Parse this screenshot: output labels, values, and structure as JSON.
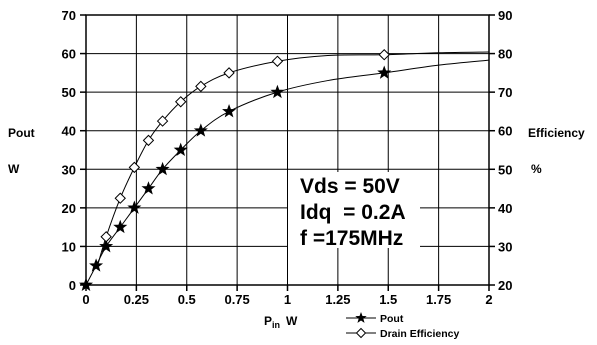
{
  "chart_data": {
    "type": "line",
    "x_axis": {
      "label_main": "P",
      "label_sub": "in",
      "label_unit": "W",
      "range": [
        0,
        2
      ],
      "ticks": [
        "0",
        "0.25",
        "0.5",
        "0.75",
        "1",
        "1.25",
        "1.5",
        "1.75",
        "2"
      ]
    },
    "y_axis_left": {
      "label": "Pout",
      "unit": "W",
      "range": [
        0,
        70
      ],
      "ticks": [
        "0",
        "10",
        "20",
        "30",
        "40",
        "50",
        "60",
        "70"
      ]
    },
    "y_axis_right": {
      "label": "Efficiency",
      "unit": "%",
      "range": [
        20,
        90
      ],
      "ticks": [
        "20",
        "30",
        "40",
        "50",
        "60",
        "70",
        "80",
        "90"
      ]
    },
    "grid": true,
    "legend_position": "bottom-right",
    "annotations": [
      "Vds = 50V",
      "Idq  = 0.2A",
      "f =175MHz"
    ],
    "series": [
      {
        "name": "Pout",
        "axis": "left",
        "marker": "star",
        "points": [
          [
            0,
            0
          ],
          [
            0.05,
            5
          ],
          [
            0.1,
            10
          ],
          [
            0.17,
            15
          ],
          [
            0.24,
            20
          ],
          [
            0.31,
            25
          ],
          [
            0.38,
            30
          ],
          [
            0.47,
            35
          ],
          [
            0.57,
            40
          ],
          [
            0.71,
            45
          ],
          [
            0.95,
            50
          ],
          [
            1.48,
            55
          ]
        ],
        "curve": [
          [
            0,
            0
          ],
          [
            0.05,
            5
          ],
          [
            0.1,
            10
          ],
          [
            0.17,
            15
          ],
          [
            0.24,
            20
          ],
          [
            0.31,
            25
          ],
          [
            0.38,
            30
          ],
          [
            0.47,
            35
          ],
          [
            0.57,
            40
          ],
          [
            0.71,
            45
          ],
          [
            0.95,
            50
          ],
          [
            1.2,
            53
          ],
          [
            1.48,
            55
          ],
          [
            1.75,
            57
          ],
          [
            2.0,
            58.3
          ]
        ]
      },
      {
        "name": "Drain Efficiency",
        "axis": "right",
        "marker": "diamond",
        "points": [
          [
            0.1,
            32.5
          ],
          [
            0.17,
            42.5
          ],
          [
            0.24,
            50.5
          ],
          [
            0.31,
            57.5
          ],
          [
            0.38,
            62.5
          ],
          [
            0.47,
            67.5
          ],
          [
            0.57,
            71.5
          ],
          [
            0.71,
            75
          ],
          [
            0.95,
            78
          ],
          [
            1.48,
            79.7
          ]
        ],
        "curve": [
          [
            0.06,
            25.5
          ],
          [
            0.1,
            32.5
          ],
          [
            0.17,
            42.5
          ],
          [
            0.24,
            50.5
          ],
          [
            0.31,
            57.5
          ],
          [
            0.38,
            62.5
          ],
          [
            0.47,
            67.5
          ],
          [
            0.57,
            71.5
          ],
          [
            0.71,
            75
          ],
          [
            0.95,
            78
          ],
          [
            1.2,
            79.5
          ],
          [
            1.48,
            79.7
          ],
          [
            1.75,
            80.2
          ],
          [
            2.0,
            80.4
          ]
        ]
      }
    ]
  }
}
